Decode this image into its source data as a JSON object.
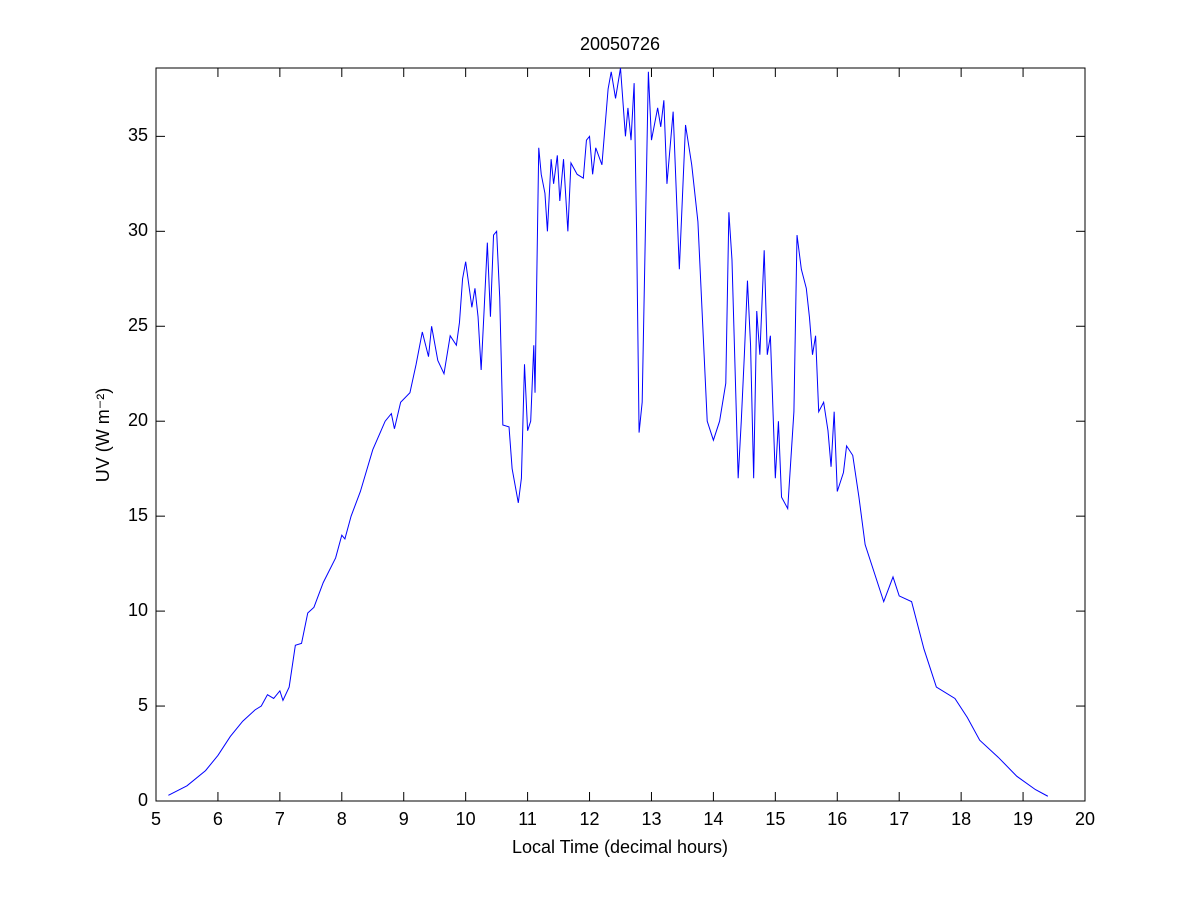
{
  "chart_data": {
    "type": "line",
    "title": "20050726",
    "xlabel": "Local Time (decimal hours)",
    "ylabel": "UV (W m⁻²)",
    "color": "#0000ff",
    "xlim": [
      5,
      20
    ],
    "xticks": [
      5,
      6,
      7,
      8,
      9,
      10,
      11,
      12,
      13,
      14,
      15,
      16,
      17,
      18,
      19,
      20
    ],
    "ylim": [
      0,
      38.6
    ],
    "yticks": [
      0,
      5,
      10,
      15,
      20,
      25,
      30,
      35
    ],
    "x": [
      5.2,
      5.5,
      5.8,
      6.0,
      6.2,
      6.4,
      6.6,
      6.7,
      6.8,
      6.9,
      7.0,
      7.05,
      7.15,
      7.25,
      7.35,
      7.45,
      7.55,
      7.7,
      7.9,
      8.0,
      8.05,
      8.15,
      8.3,
      8.5,
      8.7,
      8.8,
      8.85,
      8.95,
      9.1,
      9.2,
      9.3,
      9.4,
      9.45,
      9.55,
      9.65,
      9.75,
      9.85,
      9.9,
      9.95,
      10.0,
      10.1,
      10.15,
      10.2,
      10.25,
      10.3,
      10.35,
      10.4,
      10.45,
      10.5,
      10.55,
      10.6,
      10.7,
      10.75,
      10.85,
      10.9,
      10.95,
      11.0,
      11.05,
      11.1,
      11.12,
      11.18,
      11.22,
      11.28,
      11.32,
      11.38,
      11.42,
      11.48,
      11.52,
      11.58,
      11.65,
      11.7,
      11.8,
      11.9,
      11.95,
      12.0,
      12.05,
      12.1,
      12.2,
      12.3,
      12.35,
      12.42,
      12.5,
      12.58,
      12.62,
      12.67,
      12.72,
      12.76,
      12.8,
      12.85,
      12.95,
      13.0,
      13.1,
      13.15,
      13.2,
      13.25,
      13.35,
      13.45,
      13.5,
      13.55,
      13.65,
      13.75,
      13.9,
      14.0,
      14.1,
      14.2,
      14.25,
      14.3,
      14.4,
      14.45,
      14.5,
      14.55,
      14.6,
      14.65,
      14.7,
      14.75,
      14.82,
      14.87,
      14.92,
      15.0,
      15.05,
      15.1,
      15.2,
      15.3,
      15.35,
      15.42,
      15.5,
      15.55,
      15.6,
      15.65,
      15.7,
      15.78,
      15.85,
      15.9,
      15.95,
      16.0,
      16.1,
      16.15,
      16.25,
      16.35,
      16.45,
      16.6,
      16.75,
      16.9,
      17.0,
      17.2,
      17.4,
      17.6,
      17.9,
      18.1,
      18.3,
      18.6,
      18.9,
      19.2,
      19.4
    ],
    "values": [
      0.3,
      0.8,
      1.6,
      2.4,
      3.4,
      4.2,
      4.8,
      5.0,
      5.6,
      5.4,
      5.8,
      5.3,
      6.0,
      8.2,
      8.3,
      9.9,
      10.2,
      11.5,
      12.8,
      14.0,
      13.8,
      15.0,
      16.3,
      18.5,
      20.0,
      20.4,
      19.6,
      21.0,
      21.5,
      23.0,
      24.7,
      23.4,
      25.0,
      23.2,
      22.5,
      24.5,
      24.0,
      25.2,
      27.5,
      28.4,
      26.0,
      27.0,
      25.5,
      22.7,
      26.0,
      29.4,
      25.5,
      29.8,
      30.0,
      26.5,
      19.8,
      19.7,
      17.5,
      15.7,
      17.0,
      23.0,
      19.5,
      20.0,
      24.0,
      21.5,
      34.4,
      33.0,
      32.0,
      30.0,
      33.8,
      32.5,
      34.0,
      31.6,
      33.8,
      30.0,
      33.6,
      33.0,
      32.8,
      34.8,
      35.0,
      33.0,
      34.4,
      33.5,
      37.5,
      38.4,
      37.0,
      38.6,
      35.0,
      36.5,
      34.8,
      37.8,
      30.0,
      19.4,
      21.0,
      38.4,
      34.8,
      36.5,
      35.5,
      36.9,
      32.5,
      36.3,
      28.0,
      31.8,
      35.6,
      33.5,
      30.5,
      20.0,
      19.0,
      20.0,
      22.0,
      31.0,
      28.5,
      17.0,
      20.0,
      23.5,
      27.4,
      24.0,
      17.0,
      25.8,
      23.5,
      29.0,
      23.5,
      24.5,
      17.0,
      20.0,
      16.0,
      15.4,
      20.5,
      29.8,
      28.0,
      27.0,
      25.5,
      23.5,
      24.5,
      20.5,
      21.0,
      19.5,
      17.6,
      20.5,
      16.3,
      17.3,
      18.7,
      18.2,
      16.0,
      13.5,
      12.0,
      10.5,
      11.8,
      10.8,
      10.5,
      8.0,
      6.0,
      5.4,
      4.4,
      3.2,
      2.3,
      1.3,
      0.6,
      0.25
    ]
  }
}
